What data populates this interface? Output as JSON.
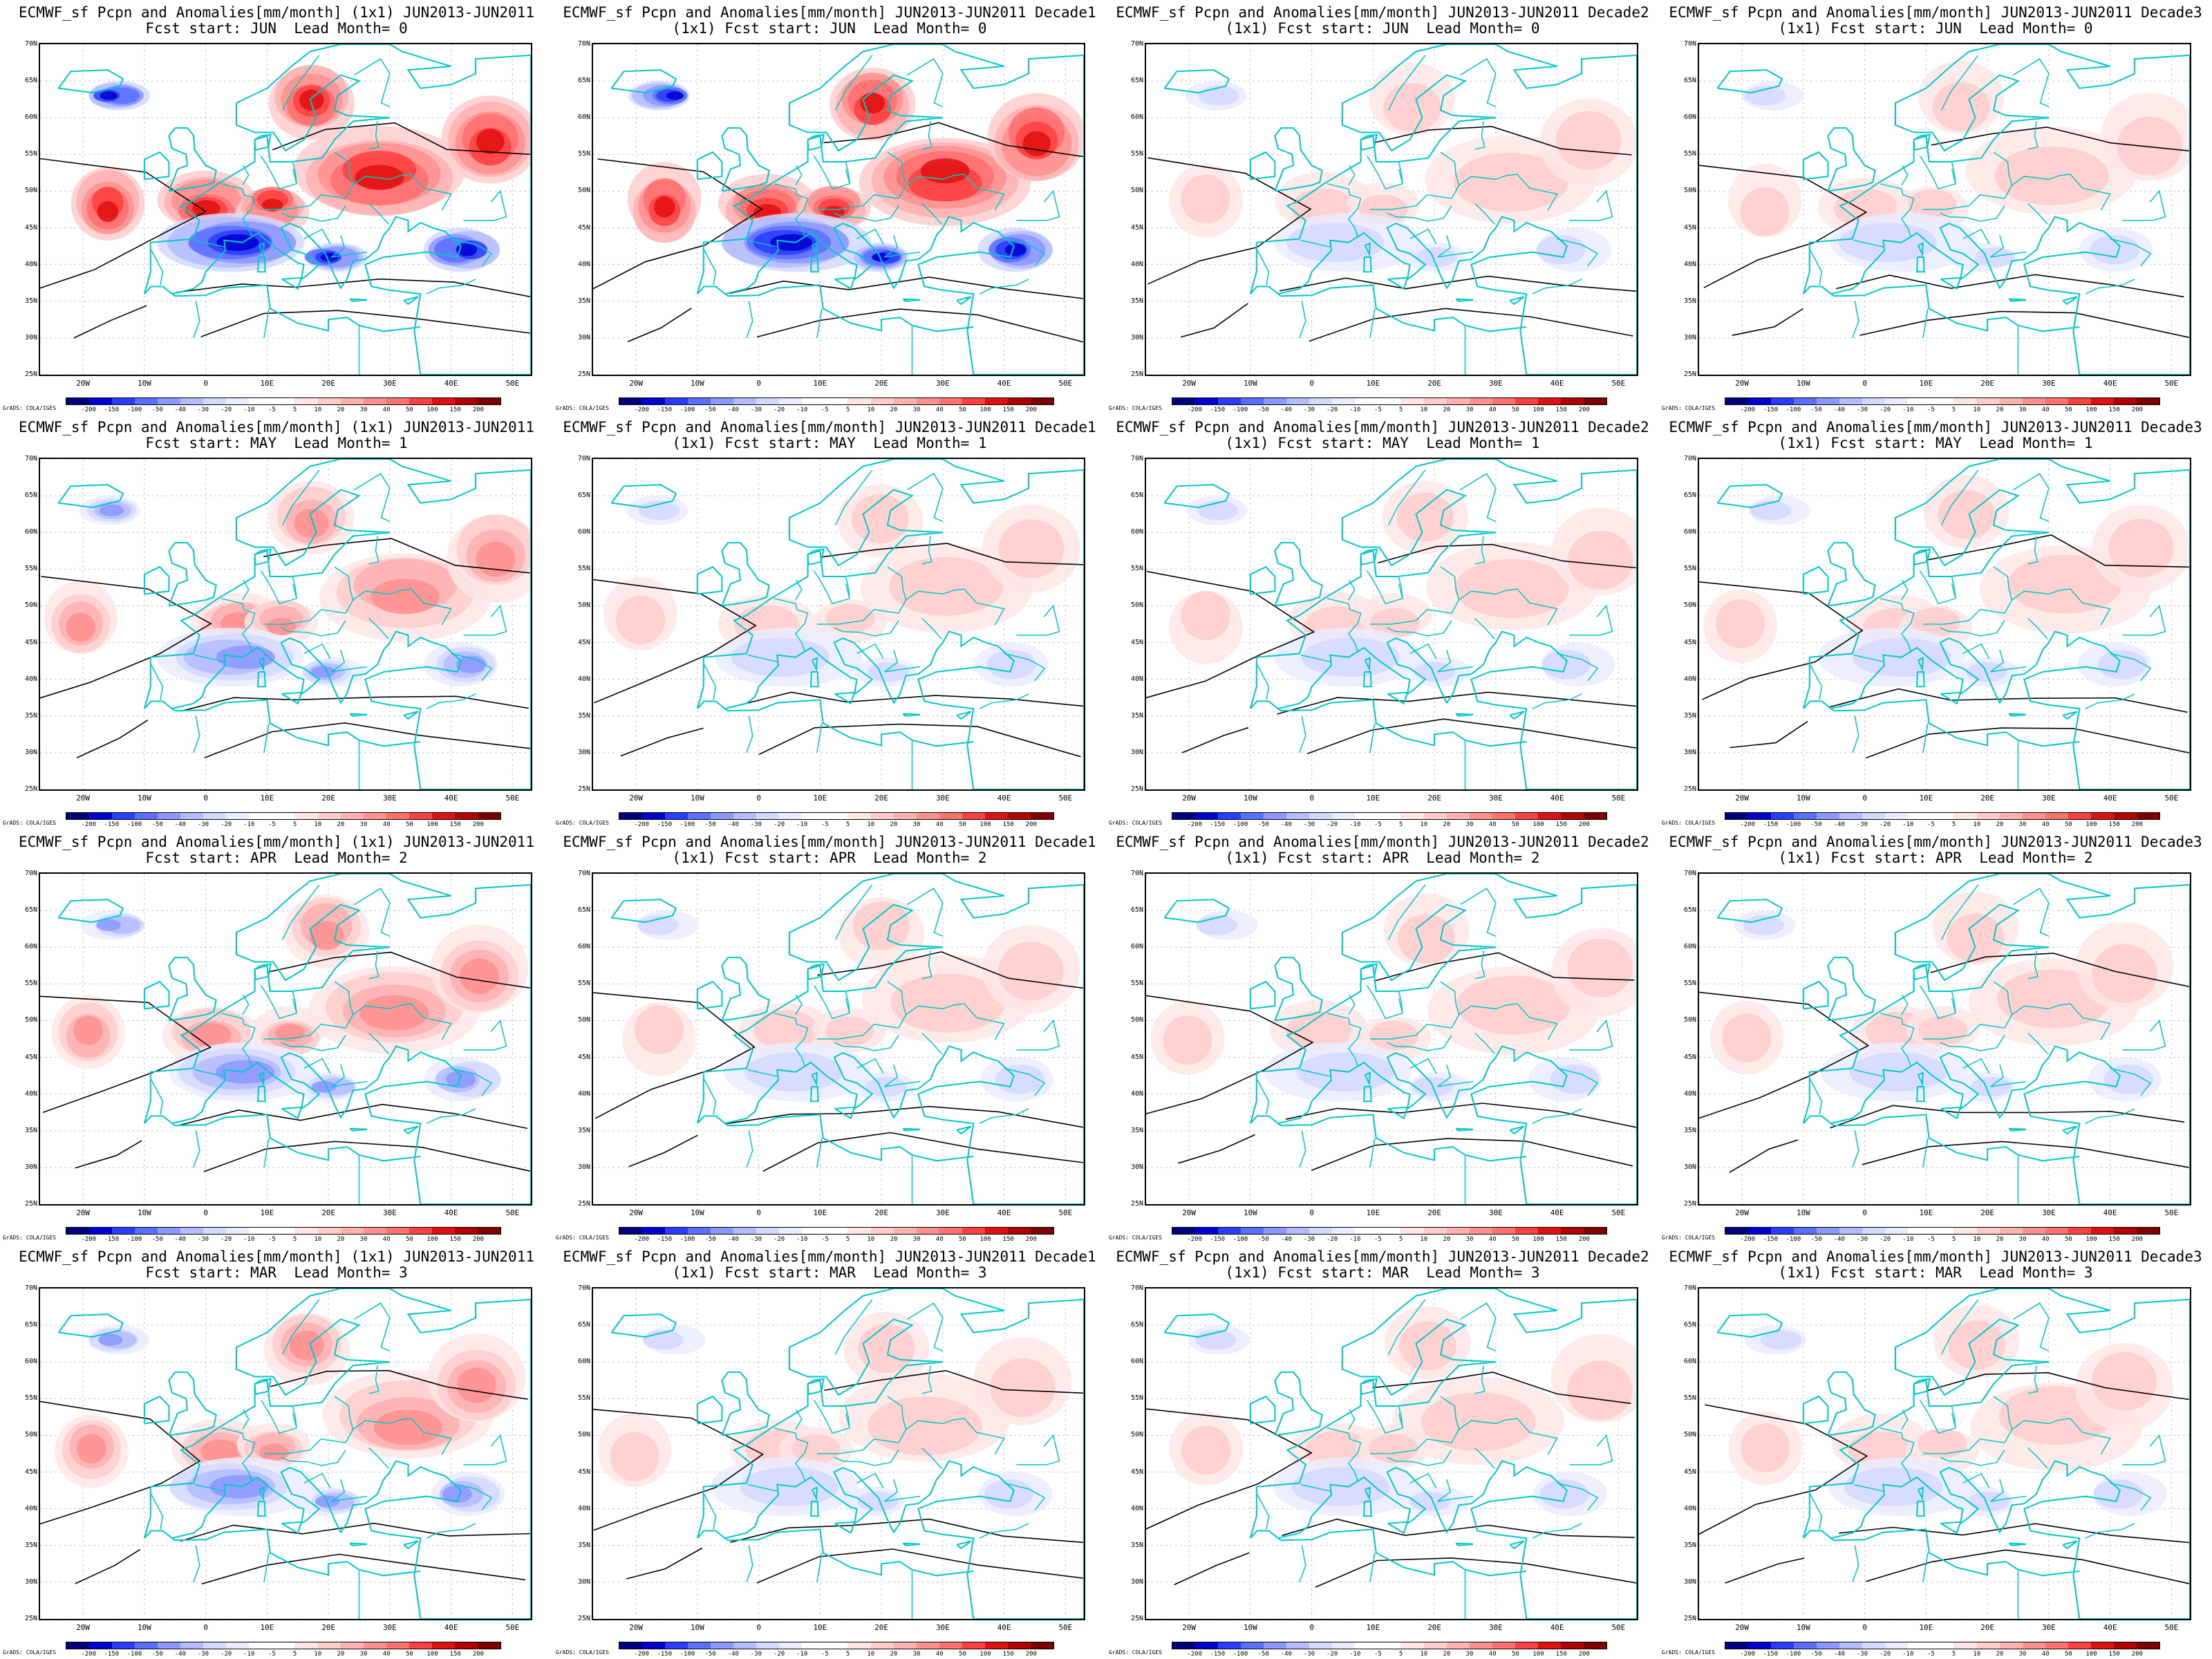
{
  "colors": {
    "coast": "#00c8c8",
    "contour": "#000000",
    "palette": [
      "#00007f",
      "#0000d0",
      "#2a3cff",
      "#5a6eff",
      "#8a98ff",
      "#b4bcff",
      "#d4d9ff",
      "#eaecff",
      "#ffffff",
      "#ffffff",
      "#ffe6e6",
      "#ffcccc",
      "#ffb0b0",
      "#ff9090",
      "#ff7070",
      "#ff4040",
      "#e01010",
      "#b00000",
      "#7f0000"
    ]
  },
  "colorbar_labels": [
    "-200",
    "-150",
    "-100",
    "-50",
    "-40",
    "-30",
    "-20",
    "-10",
    "-5",
    "5",
    "10",
    "20",
    "30",
    "40",
    "50",
    "100",
    "150",
    "200"
  ],
  "credit": "GrADS: COLA/IGES",
  "axes": {
    "lat_labels": [
      "70N",
      "65N",
      "60N",
      "55N",
      "50N",
      "45N",
      "40N",
      "35N",
      "30N",
      "25N"
    ],
    "lon_labels": [
      "20W",
      "10W",
      "0",
      "10E",
      "20E",
      "30E",
      "40E",
      "50E"
    ]
  },
  "panels": [
    {
      "title1": "ECMWF_sf Pcpn and Anomalies[mm/month] (1x1) JUN2013-JUN2011",
      "title2": "Fcst start: JUN  Lead Month= 0",
      "intensity": 1.0,
      "seed": 3
    },
    {
      "title1": "ECMWF_sf Pcpn and Anomalies[mm/month] JUN2013-JUN2011 Decade1",
      "title2": "(1x1) Fcst start: JUN  Lead Month= 0",
      "intensity": 0.95,
      "seed": 7
    },
    {
      "title1": "ECMWF_sf Pcpn and Anomalies[mm/month] JUN2013-JUN2011 Decade2",
      "title2": "(1x1) Fcst start: JUN  Lead Month= 0",
      "intensity": 0.35,
      "seed": 11
    },
    {
      "title1": "ECMWF_sf Pcpn and Anomalies[mm/month] JUN2013-JUN2011 Decade3",
      "title2": "(1x1) Fcst start: JUN  Lead Month= 0",
      "intensity": 0.35,
      "seed": 13
    },
    {
      "title1": "ECMWF_sf Pcpn and Anomalies[mm/month] (1x1) JUN2013-JUN2011",
      "title2": "Fcst start: MAY  Lead Month= 1",
      "intensity": 0.6,
      "seed": 17
    },
    {
      "title1": "ECMWF_sf Pcpn and Anomalies[mm/month] JUN2013-JUN2011 Decade1",
      "title2": "(1x1) Fcst start: MAY  Lead Month= 1",
      "intensity": 0.3,
      "seed": 19
    },
    {
      "title1": "ECMWF_sf Pcpn and Anomalies[mm/month] JUN2013-JUN2011 Decade2",
      "title2": "(1x1) Fcst start: MAY  Lead Month= 1",
      "intensity": 0.25,
      "seed": 23
    },
    {
      "title1": "ECMWF_sf Pcpn and Anomalies[mm/month] JUN2013-JUN2011 Decade3",
      "title2": "(1x1) Fcst start: MAY  Lead Month= 1",
      "intensity": 0.25,
      "seed": 29
    },
    {
      "title1": "ECMWF_sf Pcpn and Anomalies[mm/month] (1x1) JUN2013-JUN2011",
      "title2": "Fcst start: APR  Lead Month= 2",
      "intensity": 0.6,
      "seed": 31
    },
    {
      "title1": "ECMWF_sf Pcpn and Anomalies[mm/month] JUN2013-JUN2011 Decade1",
      "title2": "(1x1) Fcst start: APR  Lead Month= 2",
      "intensity": 0.3,
      "seed": 37
    },
    {
      "title1": "ECMWF_sf Pcpn and Anomalies[mm/month] JUN2013-JUN2011 Decade2",
      "title2": "(1x1) Fcst start: APR  Lead Month= 2",
      "intensity": 0.3,
      "seed": 41
    },
    {
      "title1": "ECMWF_sf Pcpn and Anomalies[mm/month] JUN2013-JUN2011 Decade3",
      "title2": "(1x1) Fcst start: APR  Lead Month= 2",
      "intensity": 0.3,
      "seed": 43
    },
    {
      "title1": "ECMWF_sf Pcpn and Anomalies[mm/month] (1x1) JUN2013-JUN2011",
      "title2": "Fcst start: MAR  Lead Month= 3",
      "intensity": 0.6,
      "seed": 47
    },
    {
      "title1": "ECMWF_sf Pcpn and Anomalies[mm/month] JUN2013-JUN2011 Decade1",
      "title2": "(1x1) Fcst start: MAR  Lead Month= 3",
      "intensity": 0.3,
      "seed": 53
    },
    {
      "title1": "ECMWF_sf Pcpn and Anomalies[mm/month] JUN2013-JUN2011 Decade2",
      "title2": "(1x1) Fcst start: MAR  Lead Month= 3",
      "intensity": 0.3,
      "seed": 59
    },
    {
      "title1": "ECMWF_sf Pcpn and Anomalies[mm/month] JUN2013-JUN2011 Decade3",
      "title2": "(1x1) Fcst start: MAR  Lead Month= 3",
      "intensity": 0.3,
      "seed": 61
    }
  ]
}
